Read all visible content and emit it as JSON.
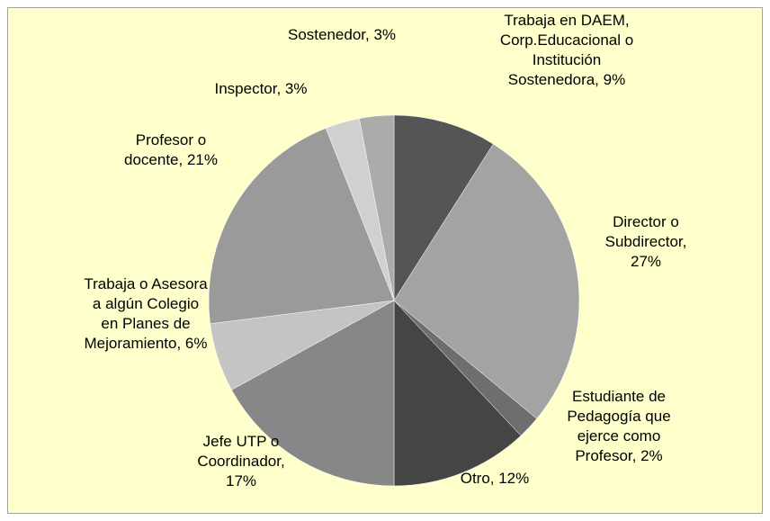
{
  "chart_data": {
    "type": "pie",
    "categories": [
      "Trabaja en DAEM, Corp.Educacional o Institución Sostenedora, 9%",
      "Director o Subdirector, 27%",
      "Estudiante de Pedagogía que ejerce como Profesor, 2%",
      "Otro, 12%",
      "Jefe UTP o Coordinador, 17%",
      "Trabaja o Asesora a algún Colegio en Planes de Mejoramiento, 6%",
      "Profesor o docente, 21%",
      "Inspector, 3%",
      "Sostenedor, 3%"
    ],
    "values": [
      9,
      27,
      2,
      12,
      17,
      6,
      21,
      3,
      3
    ],
    "colors": [
      "#555555",
      "#a3a3a3",
      "#6e6e6e",
      "#454545",
      "#878787",
      "#c4c4c4",
      "#9a9a9a",
      "#d0d0d0",
      "#ababab"
    ]
  }
}
